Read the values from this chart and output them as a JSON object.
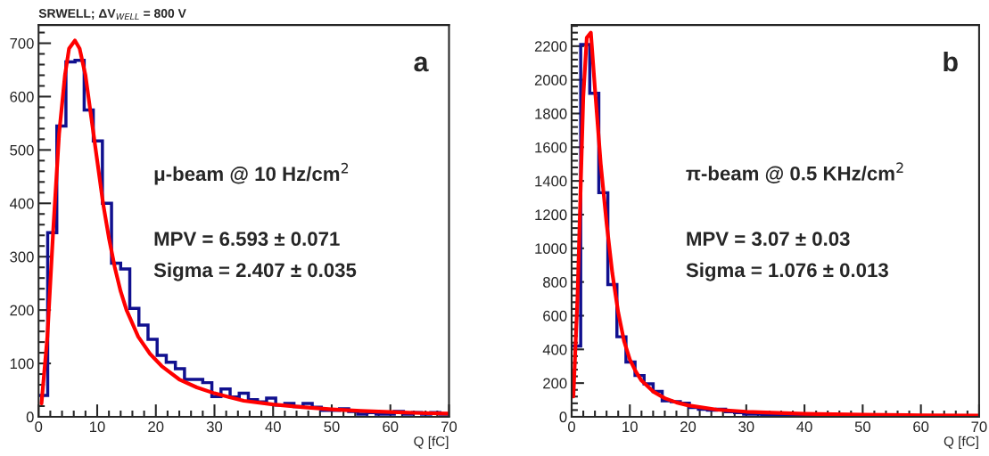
{
  "chart_data": [
    {
      "type": "histogram",
      "title": "SRWELL; ΔV$_{WELL}$ = 800 V",
      "xlabel": "Q [fC]",
      "xlim": [
        0,
        70
      ],
      "xticks": [
        0,
        10,
        20,
        30,
        40,
        50,
        60,
        70
      ],
      "ylim": [
        0,
        734
      ],
      "yticks": [
        0,
        100,
        200,
        300,
        400,
        500,
        600,
        700
      ],
      "grid": false,
      "legend": false,
      "series": [
        {
          "color": "#10108f",
          "bins": [
            0,
            1.556,
            3.111,
            4.667,
            6.222,
            7.778,
            9.333,
            10.889,
            12.444,
            14,
            15.556,
            17.111,
            18.667,
            20.222,
            21.778,
            23.333,
            24.889,
            26.444,
            28,
            29.556,
            31.111,
            32.667,
            34.222,
            35.778,
            37.333,
            38.889,
            40.444,
            42,
            43.556,
            45.111,
            46.667,
            48.222,
            49.778,
            51.333,
            52.889,
            54.444,
            56,
            57.556,
            59.111,
            60.667,
            62.222,
            63.778,
            65.333,
            66.889,
            68.444,
            70
          ],
          "values": [
            40,
            345,
            545,
            665,
            668,
            575,
            517,
            400,
            288,
            277,
            203,
            172,
            145,
            115,
            102,
            90,
            70,
            70,
            64,
            38,
            52,
            37,
            44,
            32,
            28,
            35,
            22,
            25,
            19,
            25,
            18,
            12,
            12,
            15,
            10,
            5,
            8,
            5,
            5,
            10,
            5,
            8,
            5,
            8,
            5
          ]
        },
        {
          "type": "line",
          "color": "#ff0000",
          "x": [
            0.5,
            1.5,
            2.5,
            3.5,
            4.5,
            5.2,
            6.2,
            7,
            8,
            9,
            10,
            11,
            12,
            13,
            14,
            15,
            17,
            19,
            21,
            24,
            27,
            30,
            35,
            40,
            45,
            50,
            55,
            60,
            65,
            70
          ],
          "values": [
            25,
            150,
            350,
            530,
            640,
            690,
            705,
            690,
            640,
            560,
            480,
            400,
            335,
            280,
            235,
            200,
            150,
            118,
            95,
            70,
            55,
            44,
            30,
            23,
            18,
            14,
            11,
            9,
            7,
            6
          ]
        }
      ],
      "annotations": [
        "a",
        "μ-beam @ 10 Hz/cm$^{2}$",
        "MPV = 6.593 ± 0.071",
        "Sigma = 2.407 ± 0.035"
      ]
    },
    {
      "type": "histogram",
      "xlabel": "Q [fC]",
      "xlim": [
        0,
        70
      ],
      "xticks": [
        0,
        10,
        20,
        30,
        40,
        50,
        60,
        70
      ],
      "ylim": [
        0,
        2325
      ],
      "yticks": [
        0,
        200,
        400,
        600,
        800,
        1000,
        1200,
        1400,
        1600,
        1800,
        2000,
        2200
      ],
      "grid": false,
      "legend": false,
      "series": [
        {
          "color": "#10108f",
          "bins": [
            0,
            1.556,
            3.111,
            4.667,
            6.222,
            7.778,
            9.333,
            10.889,
            12.444,
            14,
            15.556,
            17.111,
            18.667,
            20.222,
            21.778,
            23.333,
            24.889,
            26.444,
            28,
            29.556,
            31.111,
            32.667,
            34.222,
            35.778,
            37.333,
            38.889,
            40.444,
            42,
            43.556,
            45.111,
            46.667,
            48.222,
            49.778,
            51.333,
            52.889,
            54.444,
            56,
            57.556,
            59.111,
            60.667,
            62.222,
            63.778,
            65.333,
            66.889,
            68.444,
            70
          ],
          "values": [
            420,
            2210,
            1920,
            1330,
            785,
            475,
            325,
            245,
            195,
            150,
            95,
            90,
            80,
            55,
            45,
            40,
            45,
            30,
            25,
            15,
            15,
            12,
            10,
            10,
            10,
            8,
            10,
            8,
            10,
            8,
            5,
            5,
            5,
            5,
            3,
            3,
            5,
            3,
            3,
            3,
            3,
            2,
            2,
            5,
            3
          ]
        },
        {
          "type": "line",
          "color": "#ff0000",
          "x": [
            0.3,
            1,
            1.5,
            2,
            2.6,
            3.3,
            4,
            5,
            6,
            7,
            8,
            9,
            10,
            11,
            12,
            14,
            16,
            18,
            20,
            25,
            30,
            40,
            50,
            60,
            70
          ],
          "values": [
            120,
            700,
            1300,
            1900,
            2250,
            2280,
            1950,
            1500,
            1150,
            850,
            620,
            450,
            340,
            270,
            215,
            150,
            110,
            85,
            68,
            42,
            30,
            18,
            12,
            9,
            7
          ]
        }
      ],
      "annotations": [
        "b",
        "π-beam @ 0.5 KHz/cm$^{2}$",
        "MPV = 3.07 ± 0.03",
        "Sigma = 1.076 ± 0.013"
      ]
    }
  ]
}
